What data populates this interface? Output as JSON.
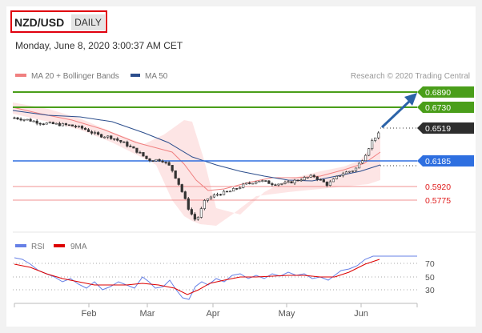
{
  "header": {
    "symbol": "NZD/USD",
    "period": "DAILY",
    "datetime": "Monday, June 8, 2020 3:00:37 AM CET"
  },
  "legend": {
    "ma20": {
      "label": "MA 20 + Bollinger Bands",
      "color": "#f08080"
    },
    "ma50": {
      "label": "MA 50",
      "color": "#2b4d8c"
    },
    "credit": "Research © 2020 Trading Central"
  },
  "rsi_legend": {
    "rsi": {
      "label": "RSI",
      "color": "#6680e6"
    },
    "ma9": {
      "label": "9MA",
      "color": "#dd0000"
    }
  },
  "levels": [
    {
      "value": "0.6890",
      "color": "#4a9e1a",
      "role": "resistance"
    },
    {
      "value": "0.6730",
      "color": "#4a9e1a",
      "role": "resistance"
    },
    {
      "value": "0.6519",
      "color": "#333333",
      "role": "last price"
    },
    {
      "value": "0.6185",
      "color": "#2e6fe0",
      "role": "pivot"
    },
    {
      "value": "0.5920",
      "color": "#e02020",
      "role": "support"
    },
    {
      "value": "0.5775",
      "color": "#e02020",
      "role": "support"
    }
  ],
  "rsi_ticks": [
    "70",
    "50",
    "30"
  ],
  "x_ticks": [
    "Feb",
    "Mar",
    "Apr",
    "May",
    "Jun"
  ],
  "chart_data": {
    "type": "candlestick",
    "title": "NZD/USD",
    "price_scale": {
      "min": 0.56,
      "max": 0.695
    },
    "x_start_day_of_2020": 0,
    "price_series": [
      {
        "x": 0,
        "y": 0.666
      },
      {
        "x": 6,
        "y": 0.664
      },
      {
        "x": 12,
        "y": 0.661
      },
      {
        "x": 18,
        "y": 0.66
      },
      {
        "x": 24,
        "y": 0.659
      },
      {
        "x": 30,
        "y": 0.656
      },
      {
        "x": 36,
        "y": 0.65
      },
      {
        "x": 42,
        "y": 0.648
      },
      {
        "x": 48,
        "y": 0.642
      },
      {
        "x": 54,
        "y": 0.634
      },
      {
        "x": 58,
        "y": 0.627
      },
      {
        "x": 64,
        "y": 0.627
      },
      {
        "x": 68,
        "y": 0.62
      },
      {
        "x": 72,
        "y": 0.602
      },
      {
        "x": 76,
        "y": 0.58
      },
      {
        "x": 79,
        "y": 0.57
      },
      {
        "x": 83,
        "y": 0.59
      },
      {
        "x": 88,
        "y": 0.595
      },
      {
        "x": 94,
        "y": 0.598
      },
      {
        "x": 100,
        "y": 0.604
      },
      {
        "x": 106,
        "y": 0.608
      },
      {
        "x": 112,
        "y": 0.605
      },
      {
        "x": 118,
        "y": 0.605
      },
      {
        "x": 124,
        "y": 0.609
      },
      {
        "x": 130,
        "y": 0.612
      },
      {
        "x": 136,
        "y": 0.604
      },
      {
        "x": 142,
        "y": 0.614
      },
      {
        "x": 148,
        "y": 0.618
      },
      {
        "x": 152,
        "y": 0.63
      },
      {
        "x": 156,
        "y": 0.647
      },
      {
        "x": 159,
        "y": 0.6519
      }
    ],
    "ma50": [
      {
        "x": 0,
        "y": 0.663
      },
      {
        "x": 18,
        "y": 0.662
      },
      {
        "x": 36,
        "y": 0.658
      },
      {
        "x": 54,
        "y": 0.648
      },
      {
        "x": 66,
        "y": 0.636
      },
      {
        "x": 78,
        "y": 0.618
      },
      {
        "x": 90,
        "y": 0.61
      },
      {
        "x": 102,
        "y": 0.606
      },
      {
        "x": 114,
        "y": 0.605
      },
      {
        "x": 126,
        "y": 0.604
      },
      {
        "x": 138,
        "y": 0.607
      },
      {
        "x": 150,
        "y": 0.611
      },
      {
        "x": 159,
        "y": 0.615
      }
    ],
    "rsi": {
      "range": [
        0,
        100
      ],
      "ticks": [
        70,
        50,
        30
      ]
    }
  }
}
